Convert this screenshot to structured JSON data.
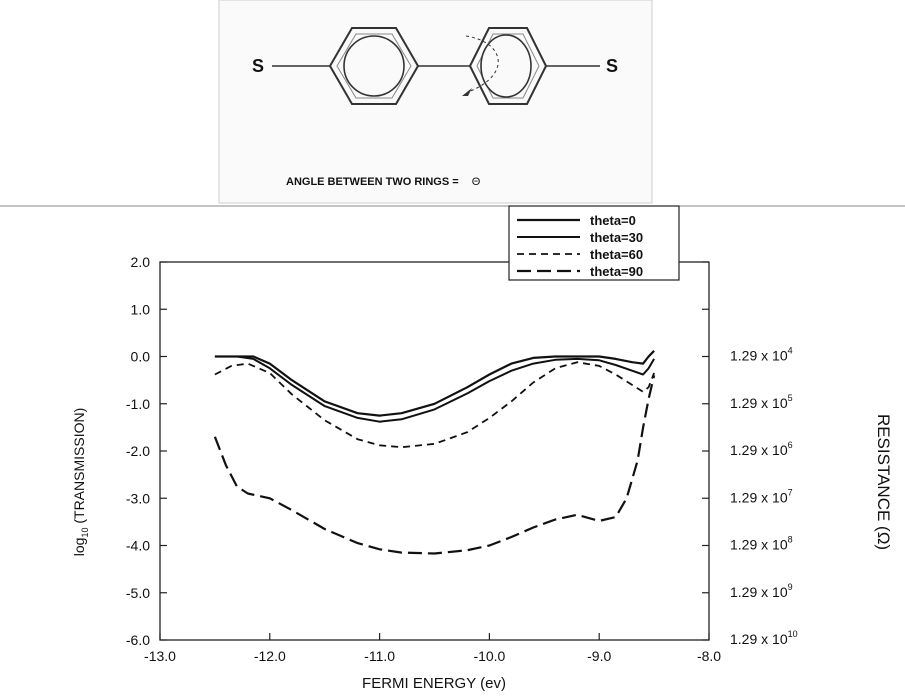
{
  "molecule": {
    "left_atom": "S",
    "right_atom": "S",
    "caption_label": "ANGLE BETWEEN TWO RINGS =",
    "caption_symbol": "Θ"
  },
  "chart_data": {
    "type": "line",
    "xlabel": "FERMI ENERGY (ev)",
    "ylabel_prefix": "log",
    "ylabel_sub": "10",
    "ylabel_rest": " (TRANSMISSION)",
    "right_axis_label": "RESISTANCE (Ω)",
    "xlim": [
      -13.0,
      -8.0
    ],
    "ylim": [
      -6.0,
      2.0
    ],
    "x_ticks": [
      "-13.0",
      "-12.0",
      "-11.0",
      "-10.0",
      "-9.0",
      "-8.0"
    ],
    "y_ticks": [
      "2.0",
      "1.0",
      "0.0",
      "-1.0",
      "-2.0",
      "-3.0",
      "-4.0",
      "-5.0",
      "-6.0"
    ],
    "right_ticks": [
      {
        "base": "1.29 x 10",
        "exp": "4",
        "at": 0
      },
      {
        "base": "1.29 x 10",
        "exp": "5",
        "at": -1
      },
      {
        "base": "1.29 x 10",
        "exp": "6",
        "at": -2
      },
      {
        "base": "1.29 x 10",
        "exp": "7",
        "at": -3
      },
      {
        "base": "1.29 x 10",
        "exp": "8",
        "at": -4
      },
      {
        "base": "1.29 x 10",
        "exp": "9",
        "at": -5
      },
      {
        "base": "1.29 x 10",
        "exp": "10",
        "at": -6
      }
    ],
    "legend_position": "top-right, above plot",
    "series": [
      {
        "name": "theta=0",
        "dash": "solid",
        "color": "#111111",
        "x": [
          -12.5,
          -12.3,
          -12.15,
          -12.0,
          -11.8,
          -11.5,
          -11.2,
          -11.0,
          -10.8,
          -10.5,
          -10.2,
          -10.0,
          -9.8,
          -9.6,
          -9.4,
          -9.2,
          -9.0,
          -8.85,
          -8.7,
          -8.6,
          -8.55,
          -8.5
        ],
        "y": [
          0.0,
          0.0,
          0.0,
          -0.15,
          -0.5,
          -0.95,
          -1.2,
          -1.25,
          -1.2,
          -1.0,
          -0.65,
          -0.38,
          -0.15,
          -0.03,
          0.0,
          0.0,
          0.0,
          -0.05,
          -0.12,
          -0.15,
          0.0,
          0.12
        ]
      },
      {
        "name": "theta=30",
        "dash": "solid",
        "color": "#111111",
        "x": [
          -12.5,
          -12.3,
          -12.15,
          -12.0,
          -11.8,
          -11.5,
          -11.2,
          -11.0,
          -10.8,
          -10.5,
          -10.2,
          -10.0,
          -9.8,
          -9.6,
          -9.4,
          -9.2,
          -9.0,
          -8.85,
          -8.7,
          -8.6,
          -8.55,
          -8.5
        ],
        "y": [
          0.0,
          0.0,
          -0.05,
          -0.25,
          -0.6,
          -1.05,
          -1.3,
          -1.38,
          -1.33,
          -1.12,
          -0.78,
          -0.52,
          -0.3,
          -0.15,
          -0.07,
          -0.05,
          -0.08,
          -0.18,
          -0.3,
          -0.38,
          -0.25,
          -0.05
        ]
      },
      {
        "name": "theta=60",
        "dash": "short",
        "color": "#111111",
        "x": [
          -12.5,
          -12.35,
          -12.2,
          -12.0,
          -11.8,
          -11.5,
          -11.2,
          -11.0,
          -10.8,
          -10.5,
          -10.2,
          -10.0,
          -9.8,
          -9.6,
          -9.4,
          -9.2,
          -9.0,
          -8.85,
          -8.7,
          -8.6,
          -8.55,
          -8.5
        ],
        "y": [
          -0.38,
          -0.2,
          -0.15,
          -0.35,
          -0.8,
          -1.35,
          -1.75,
          -1.88,
          -1.92,
          -1.85,
          -1.6,
          -1.3,
          -0.95,
          -0.55,
          -0.25,
          -0.12,
          -0.2,
          -0.38,
          -0.6,
          -0.75,
          -0.65,
          -0.35
        ]
      },
      {
        "name": "theta=90",
        "dash": "long",
        "color": "#111111",
        "x": [
          -12.5,
          -12.4,
          -12.3,
          -12.2,
          -12.0,
          -11.8,
          -11.5,
          -11.2,
          -11.0,
          -10.8,
          -10.5,
          -10.2,
          -10.0,
          -9.8,
          -9.6,
          -9.4,
          -9.2,
          -9.0,
          -8.85,
          -8.75,
          -8.65,
          -8.6,
          -8.55,
          -8.5
        ],
        "y": [
          -1.7,
          -2.3,
          -2.75,
          -2.9,
          -3.0,
          -3.25,
          -3.65,
          -3.95,
          -4.08,
          -4.15,
          -4.17,
          -4.1,
          -4.0,
          -3.82,
          -3.62,
          -3.45,
          -3.35,
          -3.48,
          -3.4,
          -3.0,
          -2.2,
          -1.5,
          -0.9,
          -0.4
        ]
      }
    ]
  }
}
